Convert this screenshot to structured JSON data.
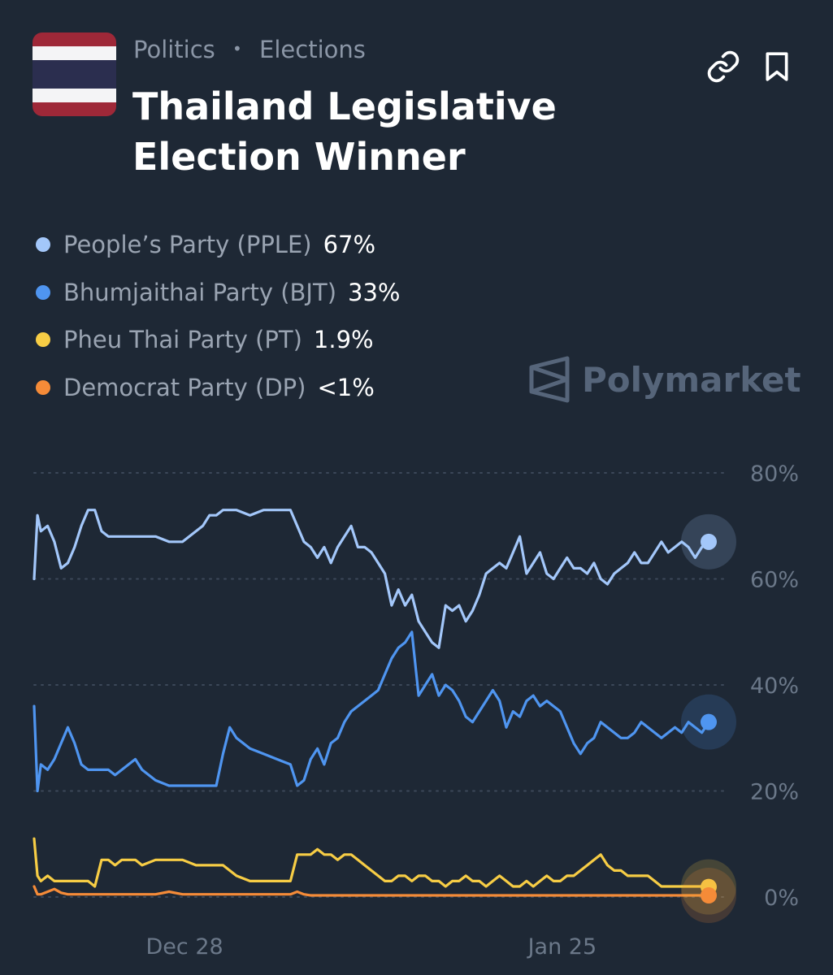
{
  "header": {
    "breadcrumb": [
      "Politics",
      "Elections"
    ],
    "title_line1": "Thailand Legislative",
    "title_line2": "Election Winner",
    "flag": "thailand-flag",
    "actions": [
      "link-icon",
      "bookmark-icon"
    ]
  },
  "legend": [
    {
      "name": "People’s Party (PPLE)",
      "value": "67%",
      "color": "#a3c7fa"
    },
    {
      "name": "Bhumjaithai Party (BJT)",
      "value": "33%",
      "color": "#4f95f0"
    },
    {
      "name": "Pheu Thai Party (PT)",
      "value": "1.9%",
      "color": "#f7cd45"
    },
    {
      "name": "Democrat Party (DP)",
      "value": "<1%",
      "color": "#f58b38"
    }
  ],
  "watermark": "Polymarket",
  "chart_data": {
    "type": "line",
    "title": "",
    "xlabel": "",
    "ylabel": "",
    "ylim": [
      0,
      80
    ],
    "y_ticks": [
      0,
      20,
      40,
      60,
      80
    ],
    "y_tick_labels": [
      "0%",
      "20%",
      "40%",
      "60%",
      "80%"
    ],
    "x_range": [
      0,
      100
    ],
    "x_ticks": [
      {
        "x": 22.3,
        "label": "Dec 28"
      },
      {
        "x": 78.3,
        "label": "Jan 25"
      }
    ],
    "grid": "horizontal-dotted",
    "legend": "top-left",
    "series": [
      {
        "name": "People’s Party (PPLE)",
        "color": "#a3c7fa",
        "x": [
          0,
          0.5,
          1,
          2,
          3,
          4,
          5,
          6,
          7,
          8,
          9,
          10,
          11,
          12,
          13,
          14,
          15,
          16,
          18,
          20,
          22,
          24,
          25,
          26,
          27,
          28,
          29,
          30,
          32,
          34,
          36,
          38,
          39,
          40,
          41,
          42,
          43,
          44,
          45,
          46,
          47,
          48,
          49,
          50,
          51,
          52,
          53,
          54,
          55,
          56,
          57,
          58,
          59,
          60,
          61,
          62,
          63,
          64,
          65,
          66,
          67,
          68,
          69,
          70,
          71,
          72,
          73,
          74,
          75,
          76,
          77,
          78,
          79,
          80,
          81,
          82,
          83,
          84,
          85,
          86,
          87,
          88,
          89,
          90,
          91,
          92,
          93,
          94,
          95,
          96,
          97,
          98,
          99,
          100
        ],
        "values": [
          60,
          72,
          69,
          70,
          67,
          62,
          63,
          66,
          70,
          73,
          73,
          69,
          68,
          68,
          68,
          68,
          68,
          68,
          68,
          67,
          67,
          69,
          70,
          72,
          72,
          73,
          73,
          73,
          72,
          73,
          73,
          73,
          70,
          67,
          66,
          64,
          66,
          63,
          66,
          68,
          70,
          66,
          66,
          65,
          63,
          61,
          55,
          58,
          55,
          57,
          52,
          50,
          48,
          47,
          55,
          54,
          55,
          52,
          54,
          57,
          61,
          62,
          63,
          62,
          65,
          68,
          61,
          63,
          65,
          61,
          60,
          62,
          64,
          62,
          62,
          61,
          63,
          60,
          59,
          61,
          62,
          63,
          65,
          63,
          63,
          65,
          67,
          65,
          66,
          67,
          66,
          64,
          66,
          67
        ]
      },
      {
        "name": "Bhumjaithai Party (BJT)",
        "color": "#4f95f0",
        "x": [
          0,
          0.5,
          1,
          2,
          3,
          4,
          5,
          6,
          7,
          8,
          9,
          10,
          11,
          12,
          13,
          14,
          15,
          16,
          18,
          20,
          22,
          24,
          25,
          26,
          27,
          28,
          29,
          30,
          32,
          34,
          36,
          38,
          39,
          40,
          41,
          42,
          43,
          44,
          45,
          46,
          47,
          48,
          49,
          50,
          51,
          52,
          53,
          54,
          55,
          56,
          57,
          58,
          59,
          60,
          61,
          62,
          63,
          64,
          65,
          66,
          67,
          68,
          69,
          70,
          71,
          72,
          73,
          74,
          75,
          76,
          77,
          78,
          79,
          80,
          81,
          82,
          83,
          84,
          85,
          86,
          87,
          88,
          89,
          90,
          91,
          92,
          93,
          94,
          95,
          96,
          97,
          98,
          99,
          100
        ],
        "values": [
          36,
          20,
          25,
          24,
          26,
          29,
          32,
          29,
          25,
          24,
          24,
          24,
          24,
          23,
          24,
          25,
          26,
          24,
          22,
          21,
          21,
          21,
          21,
          21,
          21,
          27,
          32,
          30,
          28,
          27,
          26,
          25,
          21,
          22,
          26,
          28,
          25,
          29,
          30,
          33,
          35,
          36,
          37,
          38,
          39,
          42,
          45,
          47,
          48,
          50,
          38,
          40,
          42,
          38,
          40,
          39,
          37,
          34,
          33,
          35,
          37,
          39,
          37,
          32,
          35,
          34,
          37,
          38,
          36,
          37,
          36,
          35,
          32,
          29,
          27,
          29,
          30,
          33,
          32,
          31,
          30,
          30,
          31,
          33,
          32,
          31,
          30,
          31,
          32,
          31,
          33,
          32,
          31,
          33
        ]
      },
      {
        "name": "Pheu Thai Party (PT)",
        "color": "#f7cd45",
        "x": [
          0,
          0.5,
          1,
          2,
          3,
          4,
          5,
          6,
          7,
          8,
          9,
          10,
          11,
          12,
          13,
          14,
          15,
          16,
          18,
          20,
          22,
          24,
          25,
          26,
          27,
          28,
          29,
          30,
          32,
          34,
          36,
          38,
          39,
          40,
          41,
          42,
          43,
          44,
          45,
          46,
          47,
          48,
          49,
          50,
          51,
          52,
          53,
          54,
          55,
          56,
          57,
          58,
          59,
          60,
          61,
          62,
          63,
          64,
          65,
          66,
          67,
          68,
          69,
          70,
          71,
          72,
          73,
          74,
          75,
          76,
          77,
          78,
          79,
          80,
          81,
          82,
          83,
          84,
          85,
          86,
          87,
          88,
          89,
          90,
          91,
          92,
          93,
          94,
          95,
          96,
          97,
          98,
          99,
          100
        ],
        "values": [
          11,
          4,
          3,
          4,
          3,
          3,
          3,
          3,
          3,
          3,
          2,
          7,
          7,
          6,
          7,
          7,
          7,
          6,
          7,
          7,
          7,
          6,
          6,
          6,
          6,
          6,
          5,
          4,
          3,
          3,
          3,
          3,
          8,
          8,
          8,
          9,
          8,
          8,
          7,
          8,
          8,
          7,
          6,
          5,
          4,
          3,
          3,
          4,
          4,
          3,
          4,
          4,
          3,
          3,
          2,
          3,
          3,
          4,
          3,
          3,
          2,
          3,
          4,
          3,
          2,
          2,
          3,
          2,
          3,
          4,
          3,
          3,
          4,
          4,
          5,
          6,
          7,
          8,
          6,
          5,
          5,
          4,
          4,
          4,
          4,
          3,
          2,
          2,
          2,
          2,
          2,
          2,
          2,
          1.9
        ]
      },
      {
        "name": "Democrat Party (DP)",
        "color": "#f58b38",
        "x": [
          0,
          0.5,
          1,
          2,
          3,
          4,
          5,
          6,
          7,
          8,
          9,
          10,
          11,
          12,
          13,
          14,
          15,
          16,
          18,
          20,
          22,
          24,
          25,
          26,
          27,
          28,
          29,
          30,
          32,
          34,
          36,
          38,
          39,
          40,
          41,
          42,
          43,
          44,
          45,
          46,
          47,
          48,
          49,
          50,
          51,
          52,
          53,
          54,
          55,
          56,
          57,
          58,
          59,
          60,
          61,
          62,
          63,
          64,
          65,
          66,
          67,
          68,
          69,
          70,
          71,
          72,
          73,
          74,
          75,
          76,
          77,
          78,
          79,
          80,
          81,
          82,
          83,
          84,
          85,
          86,
          87,
          88,
          89,
          90,
          91,
          92,
          93,
          94,
          95,
          96,
          97,
          98,
          99,
          100
        ],
        "values": [
          2,
          0.5,
          0.5,
          1,
          1.5,
          0.8,
          0.5,
          0.5,
          0.5,
          0.5,
          0.5,
          0.5,
          0.5,
          0.5,
          0.5,
          0.5,
          0.5,
          0.5,
          0.5,
          1,
          0.5,
          0.5,
          0.5,
          0.5,
          0.5,
          0.5,
          0.5,
          0.5,
          0.5,
          0.5,
          0.5,
          0.5,
          1,
          0.5,
          0.3,
          0.3,
          0.3,
          0.3,
          0.3,
          0.3,
          0.3,
          0.3,
          0.3,
          0.3,
          0.3,
          0.3,
          0.3,
          0.3,
          0.3,
          0.3,
          0.3,
          0.3,
          0.3,
          0.3,
          0.3,
          0.3,
          0.3,
          0.3,
          0.3,
          0.3,
          0.3,
          0.3,
          0.3,
          0.3,
          0.3,
          0.3,
          0.3,
          0.3,
          0.3,
          0.3,
          0.3,
          0.3,
          0.3,
          0.3,
          0.3,
          0.3,
          0.3,
          0.3,
          0.3,
          0.3,
          0.3,
          0.3,
          0.3,
          0.3,
          0.3,
          0.3,
          0.3,
          0.3,
          0.3,
          0.3,
          0.3,
          0.3,
          0.3,
          0.3
        ]
      }
    ]
  }
}
